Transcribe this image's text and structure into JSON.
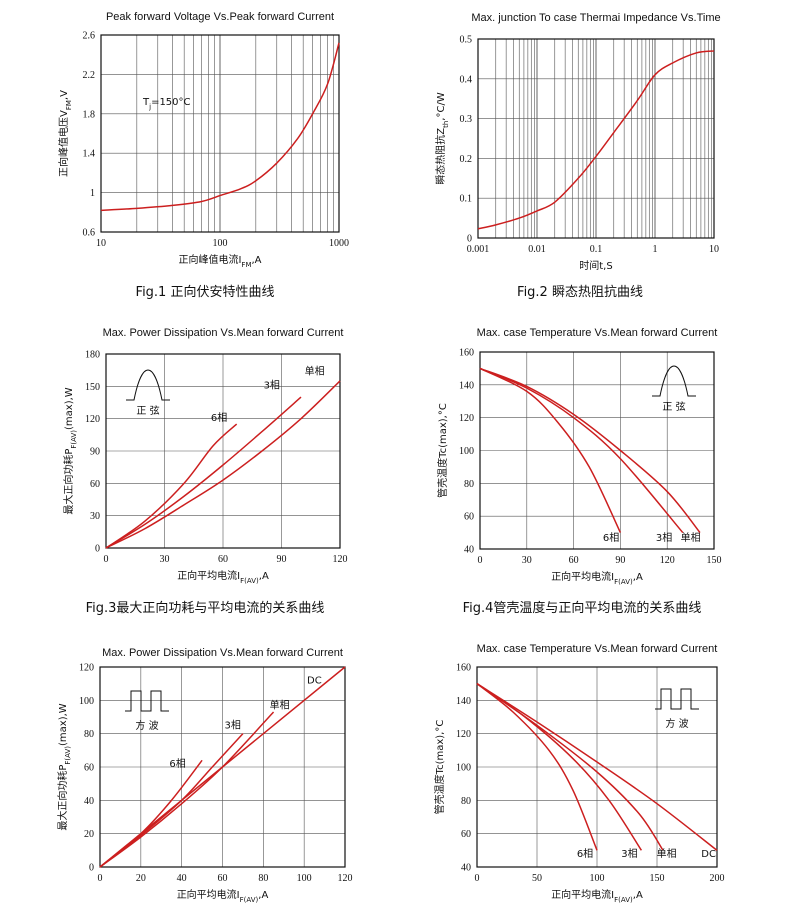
{
  "chart_data": [
    {
      "id": "c1",
      "type": "line",
      "title": "Peak forward Voltage Vs.Peak forward Current",
      "caption": "Fig.1 正向伏安特性曲线",
      "xlabel": "正向峰值电流I",
      "xlabel_sub": "FM",
      "xlabel_tail": ",A",
      "ylabel": "正向峰值电压V",
      "ylabel_sub": "FM",
      "ylabel_tail": ",V",
      "xscale": "log",
      "xlim": [
        10,
        1000
      ],
      "xticks": [
        10,
        100,
        1000
      ],
      "xtick_labels": [
        "10",
        "100",
        "1000"
      ],
      "ylim": [
        0.6,
        2.6
      ],
      "yticks": [
        0.6,
        1,
        1.4,
        1.8,
        2.2,
        2.6
      ],
      "ytick_labels": [
        "0.6",
        "1",
        "1.4",
        "1.8",
        "2.2",
        "2.6"
      ],
      "annotation": "T",
      "annotation_sub": "j",
      "annotation_tail": "=150°C",
      "grid": true,
      "series": [
        {
          "x": [
            10,
            20,
            40,
            70,
            100,
            150,
            200,
            300,
            450,
            600,
            800,
            1000
          ],
          "y": [
            0.82,
            0.84,
            0.87,
            0.91,
            0.97,
            1.04,
            1.12,
            1.3,
            1.55,
            1.8,
            2.1,
            2.52
          ]
        }
      ]
    },
    {
      "id": "c2",
      "type": "line",
      "title": "Max. junction To case Thermai Impedance Vs.Time",
      "caption": "Fig.2  瞬态热阻抗曲线",
      "xlabel": "时间t,S",
      "ylabel": "瞬态热阻抗Z",
      "ylabel_sub": "th",
      "ylabel_tail": ",°C/W",
      "xscale": "log",
      "xlim": [
        0.001,
        10
      ],
      "xticks": [
        0.001,
        0.01,
        0.1,
        1,
        10
      ],
      "xtick_labels": [
        "0.001",
        "0.01",
        "0.1",
        "1",
        "10"
      ],
      "ylim": [
        0,
        0.5
      ],
      "yticks": [
        0,
        0.1,
        0.2,
        0.3,
        0.4,
        0.5
      ],
      "ytick_labels": [
        "0",
        "0.1",
        "0.2",
        "0.3",
        "0.4",
        "0.5"
      ],
      "grid": true,
      "series": [
        {
          "x": [
            0.001,
            0.002,
            0.005,
            0.01,
            0.02,
            0.05,
            0.1,
            0.2,
            0.5,
            1,
            2,
            5,
            10
          ],
          "y": [
            0.023,
            0.033,
            0.05,
            0.068,
            0.09,
            0.15,
            0.205,
            0.265,
            0.345,
            0.41,
            0.44,
            0.465,
            0.47
          ]
        }
      ]
    },
    {
      "id": "c3",
      "type": "line",
      "title": "Max. Power Dissipation Vs.Mean forward Current",
      "caption": "Fig.3最大正向功耗与平均电流的关系曲线",
      "xlabel": "正向平均电流I",
      "xlabel_sub": "F(AV)",
      "xlabel_tail": ",A",
      "ylabel": "最大正向功耗P",
      "ylabel_sub": "F(AV)",
      "ylabel_tail": "(max),W",
      "xlim": [
        0,
        120
      ],
      "xticks": [
        0,
        30,
        60,
        90,
        120
      ],
      "xtick_labels": [
        "0",
        "30",
        "60",
        "90",
        "120"
      ],
      "ylim": [
        0,
        180
      ],
      "yticks": [
        0,
        30,
        60,
        90,
        120,
        150,
        180
      ],
      "ytick_labels": [
        "0",
        "30",
        "60",
        "90",
        "120",
        "150",
        "180"
      ],
      "inset": {
        "kind": "sine",
        "label": "正  弦"
      },
      "grid": true,
      "series": [
        {
          "name": "6相",
          "x": [
            0,
            20,
            40,
            55,
            67
          ],
          "y": [
            0,
            25,
            60,
            95,
            115
          ]
        },
        {
          "name": "3相",
          "x": [
            0,
            20,
            40,
            60,
            80,
            100
          ],
          "y": [
            0,
            22,
            48,
            77,
            108,
            140
          ]
        },
        {
          "name": "单相",
          "x": [
            0,
            20,
            40,
            60,
            80,
            100,
            120
          ],
          "y": [
            0,
            18,
            40,
            63,
            90,
            120,
            155
          ]
        }
      ]
    },
    {
      "id": "c4",
      "type": "line",
      "title": "Max. case Temperature Vs.Mean forward Current",
      "caption": "Fig.4管壳温度与正向平均电流的关系曲线",
      "xlabel": "正向平均电流I",
      "xlabel_sub": "F(AV)",
      "xlabel_tail": ",A",
      "ylabel": "管壳温度Tc(max),°C",
      "xlim": [
        0,
        150
      ],
      "xticks": [
        0,
        30,
        60,
        90,
        120,
        150
      ],
      "xtick_labels": [
        "0",
        "30",
        "60",
        "90",
        "120",
        "150"
      ],
      "ylim": [
        40,
        160
      ],
      "yticks": [
        40,
        60,
        80,
        100,
        120,
        140,
        160
      ],
      "ytick_labels": [
        "40",
        "60",
        "80",
        "100",
        "120",
        "140",
        "160"
      ],
      "inset": {
        "kind": "sine",
        "label": "正  弦"
      },
      "grid": true,
      "series": [
        {
          "name": "6相",
          "x": [
            0,
            30,
            50,
            70,
            90
          ],
          "y": [
            150,
            136,
            117,
            90,
            50
          ]
        },
        {
          "name": "3相",
          "x": [
            0,
            30,
            60,
            90,
            130
          ],
          "y": [
            150,
            138,
            120,
            95,
            50
          ]
        },
        {
          "name": "单相",
          "x": [
            0,
            30,
            60,
            90,
            120,
            141
          ],
          "y": [
            150,
            139,
            122,
            100,
            75,
            50
          ]
        }
      ]
    },
    {
      "id": "c5",
      "type": "line",
      "title": "Max. Power Dissipation Vs.Mean forward Current",
      "caption": "",
      "xlabel": "正向平均电流I",
      "xlabel_sub": "F(AV)",
      "xlabel_tail": ",A",
      "ylabel": "最大正向功耗P",
      "ylabel_sub": "F(AV)",
      "ylabel_tail": "(max),W",
      "xlim": [
        0,
        120
      ],
      "xticks": [
        0,
        20,
        40,
        60,
        80,
        100,
        120
      ],
      "xtick_labels": [
        "0",
        "20",
        "40",
        "60",
        "80",
        "100",
        "120"
      ],
      "ylim": [
        0,
        120
      ],
      "yticks": [
        0,
        20,
        40,
        60,
        80,
        100,
        120
      ],
      "ytick_labels": [
        "0",
        "20",
        "40",
        "60",
        "80",
        "100",
        "120"
      ],
      "inset": {
        "kind": "square",
        "label": "方   波"
      },
      "grid": true,
      "series": [
        {
          "name": "6相",
          "x": [
            0,
            20,
            35,
            50
          ],
          "y": [
            0,
            20,
            40,
            64
          ]
        },
        {
          "name": "3相",
          "x": [
            0,
            20,
            40,
            55,
            70
          ],
          "y": [
            0,
            19,
            40,
            60,
            80
          ]
        },
        {
          "name": "单相",
          "x": [
            0,
            20,
            40,
            60,
            85
          ],
          "y": [
            0,
            18,
            38,
            60,
            93
          ]
        },
        {
          "name": "DC",
          "x": [
            0,
            120
          ],
          "y": [
            0,
            120
          ]
        }
      ]
    },
    {
      "id": "c6",
      "type": "line",
      "title": "Max. case Temperature Vs.Mean forward Current",
      "caption": "",
      "xlabel": "正向平均电流I",
      "xlabel_sub": "F(AV)",
      "xlabel_tail": ",A",
      "ylabel": "管壳温度Tc(max),°C",
      "xlim": [
        0,
        200
      ],
      "xticks": [
        0,
        50,
        100,
        150,
        200
      ],
      "xtick_labels": [
        "0",
        "50",
        "100",
        "150",
        "200"
      ],
      "ylim": [
        40,
        160
      ],
      "yticks": [
        40,
        60,
        80,
        100,
        120,
        140,
        160
      ],
      "ytick_labels": [
        "40",
        "60",
        "80",
        "100",
        "120",
        "140",
        "160"
      ],
      "inset": {
        "kind": "square",
        "label": "方   波"
      },
      "grid": true,
      "series": [
        {
          "name": "6相",
          "x": [
            0,
            30,
            60,
            80,
            100
          ],
          "y": [
            150,
            133,
            110,
            86,
            50
          ]
        },
        {
          "name": "3相",
          "x": [
            0,
            40,
            80,
            110,
            137
          ],
          "y": [
            150,
            130,
            105,
            80,
            50
          ]
        },
        {
          "name": "单相",
          "x": [
            0,
            50,
            100,
            135,
            155
          ],
          "y": [
            150,
            125,
            97,
            72,
            50
          ]
        },
        {
          "name": "DC",
          "x": [
            0,
            50,
            100,
            150,
            200
          ],
          "y": [
            150,
            127,
            103,
            78,
            50
          ]
        }
      ]
    }
  ]
}
